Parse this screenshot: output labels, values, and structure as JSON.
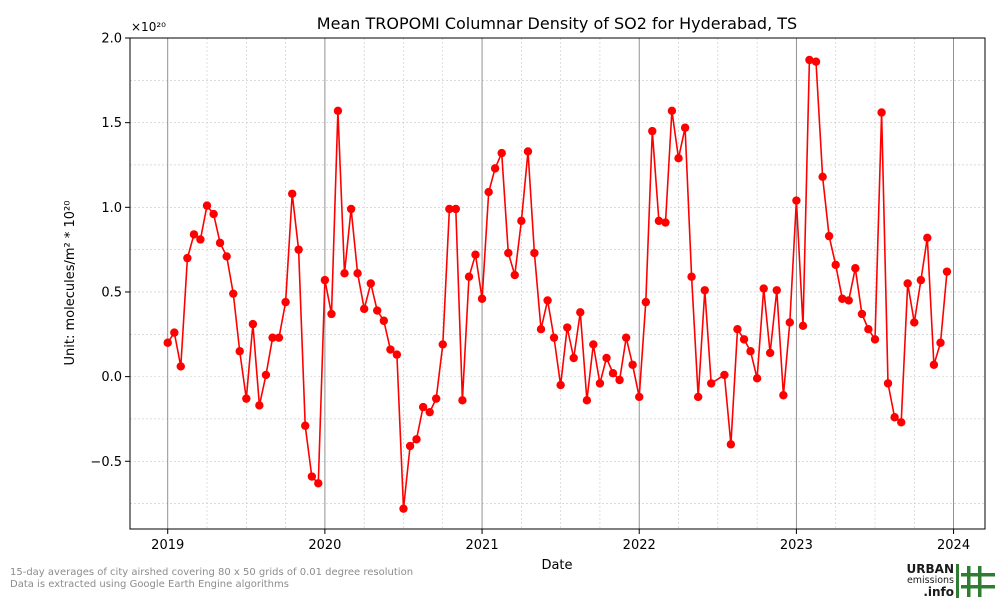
{
  "chart_data": {
    "type": "line",
    "title": "Mean TROPOMI Columnar Density of SO2 for Hyderabad, TS",
    "xlabel": "Date",
    "ylabel": "Unit: molecules/m² * 10²⁰",
    "y_multiplier_label": "×10²⁰",
    "x_tick_labels": [
      "2019",
      "2020",
      "2021",
      "2022",
      "2023",
      "2024"
    ],
    "x_tick_values": [
      2019,
      2020,
      2021,
      2022,
      2023,
      2024
    ],
    "y_tick_labels": [
      "−0.5",
      "0.0",
      "0.5",
      "1.0",
      "1.5",
      "2.0"
    ],
    "y_tick_values": [
      -0.5,
      0.0,
      0.5,
      1.0,
      1.5,
      2.0
    ],
    "xlim": [
      2018.76,
      2024.2
    ],
    "ylim": [
      -0.9,
      2.0
    ],
    "grid": true,
    "series": [
      {
        "color": "#ff0000",
        "marker": "circle",
        "x": [
          2019.0,
          2019.042,
          2019.083,
          2019.125,
          2019.167,
          2019.208,
          2019.25,
          2019.292,
          2019.333,
          2019.375,
          2019.417,
          2019.458,
          2019.5,
          2019.542,
          2019.583,
          2019.625,
          2019.667,
          2019.708,
          2019.75,
          2019.792,
          2019.833,
          2019.875,
          2019.917,
          2019.958,
          2020.0,
          2020.042,
          2020.083,
          2020.125,
          2020.167,
          2020.208,
          2020.25,
          2020.292,
          2020.333,
          2020.375,
          2020.417,
          2020.458,
          2020.5,
          2020.542,
          2020.583,
          2020.625,
          2020.667,
          2020.708,
          2020.75,
          2020.792,
          2020.833,
          2020.875,
          2020.917,
          2020.958,
          2021.0,
          2021.042,
          2021.083,
          2021.125,
          2021.167,
          2021.208,
          2021.25,
          2021.292,
          2021.333,
          2021.375,
          2021.417,
          2021.458,
          2021.5,
          2021.542,
          2021.583,
          2021.625,
          2021.667,
          2021.708,
          2021.75,
          2021.792,
          2021.833,
          2021.875,
          2021.917,
          2021.958,
          2022.0,
          2022.042,
          2022.083,
          2022.125,
          2022.167,
          2022.208,
          2022.25,
          2022.292,
          2022.333,
          2022.375,
          2022.417,
          2022.458,
          2022.542,
          2022.583,
          2022.625,
          2022.667,
          2022.708,
          2022.75,
          2022.792,
          2022.833,
          2022.875,
          2022.917,
          2022.958,
          2023.0,
          2023.042,
          2023.083,
          2023.125,
          2023.167,
          2023.208,
          2023.25,
          2023.292,
          2023.333,
          2023.375,
          2023.417,
          2023.458,
          2023.5,
          2023.542,
          2023.583,
          2023.625,
          2023.667,
          2023.708,
          2023.75,
          2023.792,
          2023.833,
          2023.875,
          2023.917,
          2023.958
        ],
        "y": [
          0.2,
          0.26,
          0.06,
          0.7,
          0.84,
          0.81,
          1.01,
          0.96,
          0.79,
          0.71,
          0.49,
          0.15,
          -0.13,
          0.31,
          -0.17,
          0.01,
          0.23,
          0.23,
          0.44,
          1.08,
          0.75,
          -0.29,
          -0.59,
          -0.63,
          0.57,
          0.37,
          1.57,
          0.61,
          0.99,
          0.61,
          0.4,
          0.55,
          0.39,
          0.33,
          0.16,
          0.13,
          -0.78,
          -0.41,
          -0.37,
          -0.18,
          -0.21,
          -0.13,
          0.19,
          0.99,
          0.99,
          -0.14,
          0.59,
          0.72,
          0.46,
          1.09,
          1.23,
          1.32,
          0.73,
          0.6,
          0.92,
          1.33,
          0.73,
          0.28,
          0.45,
          0.23,
          -0.05,
          0.29,
          0.11,
          0.38,
          -0.14,
          0.19,
          -0.04,
          0.11,
          0.02,
          -0.02,
          0.23,
          0.07,
          -0.12,
          0.44,
          1.45,
          0.92,
          0.91,
          1.57,
          1.29,
          1.47,
          0.59,
          -0.12,
          0.51,
          -0.04,
          0.01,
          -0.4,
          0.28,
          0.22,
          0.15,
          -0.01,
          0.52,
          0.14,
          0.51,
          -0.11,
          0.32,
          1.04,
          0.3,
          1.87,
          1.86,
          1.18,
          0.83,
          0.66,
          0.46,
          0.45,
          0.64,
          0.37,
          0.28,
          0.22,
          1.56,
          -0.04,
          -0.24,
          -0.27,
          0.55,
          0.32,
          0.57,
          0.82,
          0.07,
          0.2,
          0.62
        ]
      }
    ]
  },
  "footnotes": {
    "line1": "15-day averages of city airshed covering 80 x 50 grids of 0.01 degree resolution",
    "line2": "Data is extracted using Google Earth Engine algorithms"
  },
  "logo": {
    "word1": "URBAN",
    "word2": "emissions",
    "word3": ".info",
    "color": "#2e7d32"
  }
}
